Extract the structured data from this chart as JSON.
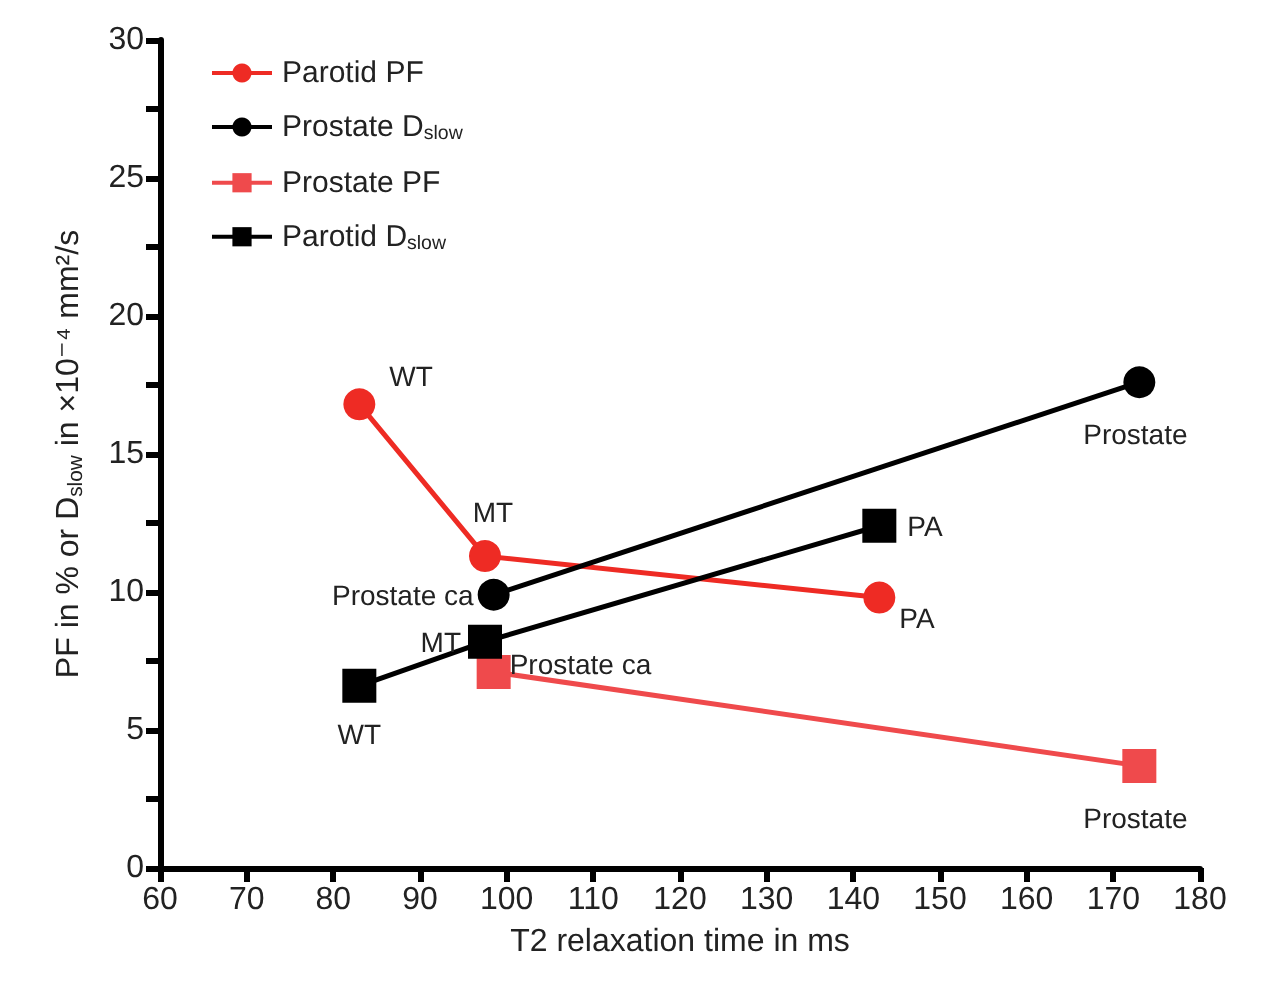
{
  "chart_data": {
    "type": "line",
    "xlabel": "T2 relaxation time in ms",
    "ylabel": "PF in % or D$_{slow}$ in ×10⁻⁴ mm²/s",
    "xlim": [
      60,
      180
    ],
    "xticks": [
      60,
      70,
      80,
      90,
      100,
      110,
      120,
      130,
      140,
      150,
      160,
      170,
      180
    ],
    "ylim": [
      0,
      30
    ],
    "yticks": [
      0,
      {
        "value": 2.5,
        "label": null
      },
      5,
      {
        "value": 7.5,
        "label": null
      },
      10,
      {
        "value": 12.5,
        "label": null
      },
      15,
      {
        "value": 17.5,
        "label": null
      },
      20,
      {
        "value": 22.5,
        "label": null
      },
      25,
      {
        "value": 27.5,
        "label": null
      },
      30
    ],
    "grid": false,
    "legend": "top left",
    "line_style": "solid",
    "series": [
      {
        "name": "Parotid PF",
        "color": "#ee2b24",
        "marker": "circle",
        "x": [
          83,
          97.5,
          143
        ],
        "values": [
          16.8,
          11.3,
          9.8
        ],
        "value_labels": [
          "WT",
          "MT",
          "PA"
        ]
      },
      {
        "name": "Prostate D$_{slow}$",
        "color": "#000000",
        "marker": "circle",
        "x": [
          98.5,
          173
        ],
        "values": [
          9.9,
          17.6
        ],
        "value_labels": [
          "Prostate ca",
          "Prostate"
        ]
      },
      {
        "name": "Prostate PF",
        "color": "#ef4a4c",
        "marker": "square",
        "x": [
          98.5,
          173
        ],
        "values": [
          7.1,
          3.7
        ],
        "value_labels": [
          "Prostate ca",
          "Prostate"
        ]
      },
      {
        "name": "Parotid D$_{slow}$",
        "color": "#000000",
        "marker": "square",
        "x": [
          83,
          97.5,
          143
        ],
        "values": [
          6.6,
          8.2,
          12.4
        ],
        "value_labels": [
          "WT",
          "MT",
          "PA"
        ]
      }
    ]
  }
}
